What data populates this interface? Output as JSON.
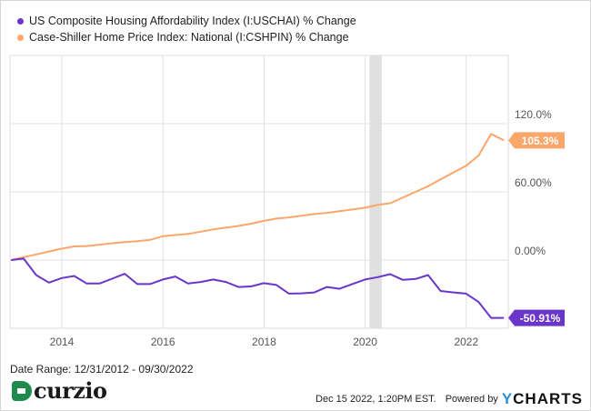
{
  "chart_data": {
    "type": "line",
    "title": "",
    "x": [
      "2012-12-31",
      "2013-03-31",
      "2013-06-30",
      "2013-09-30",
      "2013-12-31",
      "2014-03-31",
      "2014-06-30",
      "2014-09-30",
      "2014-12-31",
      "2015-03-31",
      "2015-06-30",
      "2015-09-30",
      "2015-12-31",
      "2016-03-31",
      "2016-06-30",
      "2016-09-30",
      "2016-12-31",
      "2017-03-31",
      "2017-06-30",
      "2017-09-30",
      "2017-12-31",
      "2018-03-31",
      "2018-06-30",
      "2018-09-30",
      "2018-12-31",
      "2019-03-31",
      "2019-06-30",
      "2019-09-30",
      "2019-12-31",
      "2020-03-31",
      "2020-06-30",
      "2020-09-30",
      "2020-12-31",
      "2021-03-31",
      "2021-06-30",
      "2021-09-30",
      "2021-12-31",
      "2022-03-31",
      "2022-06-30",
      "2022-09-30"
    ],
    "series": [
      {
        "name": "US Composite Housing Affordability Index (I:USCHAI) % Change",
        "color": "#6a35c9",
        "end_label": "-50.91%",
        "values": [
          0,
          1.3,
          -13.2,
          -19.8,
          -15.8,
          -14,
          -20.6,
          -20.6,
          -16.4,
          -12.1,
          -21.1,
          -21.1,
          -17.1,
          -14.5,
          -20.6,
          -19.3,
          -17.1,
          -19.3,
          -23.7,
          -23.2,
          -20.3,
          -21.9,
          -29.5,
          -29.3,
          -28.5,
          -23.7,
          -25.3,
          -21.1,
          -17.1,
          -15,
          -12.4,
          -17.4,
          -16.6,
          -13.2,
          -27.2,
          -28.5,
          -29.5,
          -36.9,
          -50.9,
          -50.91
        ]
      },
      {
        "name": "Case-Shiller Home Price Index: National (I:CSHPIN) % Change",
        "color": "#fba66a",
        "end_label": "105.3%",
        "values": [
          0,
          2.5,
          5,
          7.5,
          10,
          12,
          12.3,
          13.5,
          14.8,
          15.8,
          16.6,
          17.8,
          21,
          22,
          23,
          25,
          27,
          28.5,
          30,
          32,
          34.5,
          36.5,
          37.5,
          39,
          40.5,
          41.5,
          43,
          44.5,
          46,
          48.5,
          50,
          55,
          60,
          65,
          71,
          77,
          83,
          92,
          111,
          105.3
        ]
      }
    ],
    "x_ticks": [
      "2014",
      "2016",
      "2018",
      "2020",
      "2022"
    ],
    "y_ticks": [
      {
        "value": 120,
        "label": "120.0%"
      },
      {
        "value": 60,
        "label": "60.00%"
      },
      {
        "value": 0,
        "label": "0.00%"
      }
    ],
    "ylim": [
      -60,
      180
    ],
    "xlim": [
      "2012-12-31",
      "2022-09-30"
    ],
    "y_axis_side": "right",
    "grid": true,
    "legend_placement": "top-left",
    "recession_band": [
      "2020-02-01",
      "2020-04-30"
    ]
  },
  "footer": {
    "date_range": "Date Range: 12/31/2012 - 09/30/2022",
    "timestamp": "Dec 15 2022, 1:20PM EST.",
    "powered_by": "Powered by",
    "ycharts_y": "Y",
    "ycharts_rest": "CHARTS",
    "logo_text": "curzio"
  }
}
